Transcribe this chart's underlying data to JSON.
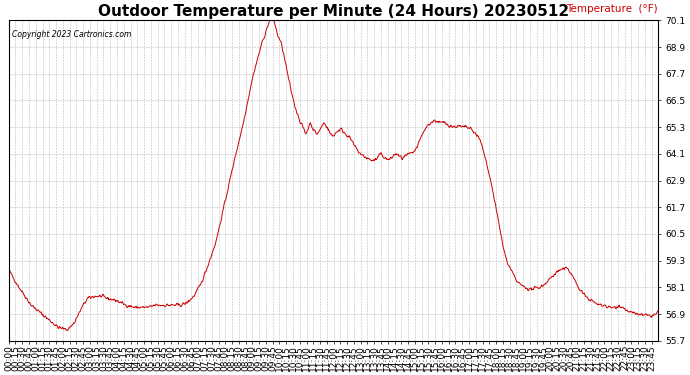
{
  "title": "Outdoor Temperature per Minute (24 Hours) 20230512",
  "copyright": "Copyright 2023 Cartronics.com",
  "legend_label": "Temperature  (°F)",
  "line_color": "#cc0000",
  "background_color": "#ffffff",
  "grid_color": "#aaaaaa",
  "ylim": [
    55.7,
    70.1
  ],
  "yticks": [
    55.7,
    56.9,
    58.1,
    59.3,
    60.5,
    61.7,
    62.9,
    64.1,
    65.3,
    66.5,
    67.7,
    68.9,
    70.1
  ],
  "x_tick_interval": 15,
  "title_fontsize": 11,
  "axis_fontsize": 6.5,
  "control_points": [
    [
      0,
      58.9
    ],
    [
      20,
      58.2
    ],
    [
      50,
      57.3
    ],
    [
      80,
      56.8
    ],
    [
      110,
      56.3
    ],
    [
      130,
      56.2
    ],
    [
      145,
      56.5
    ],
    [
      155,
      56.9
    ],
    [
      165,
      57.3
    ],
    [
      175,
      57.6
    ],
    [
      190,
      57.7
    ],
    [
      205,
      57.7
    ],
    [
      220,
      57.6
    ],
    [
      240,
      57.5
    ],
    [
      260,
      57.3
    ],
    [
      280,
      57.2
    ],
    [
      295,
      57.2
    ],
    [
      310,
      57.2
    ],
    [
      325,
      57.3
    ],
    [
      340,
      57.3
    ],
    [
      360,
      57.3
    ],
    [
      380,
      57.3
    ],
    [
      395,
      57.4
    ],
    [
      410,
      57.7
    ],
    [
      425,
      58.2
    ],
    [
      440,
      59.0
    ],
    [
      460,
      60.2
    ],
    [
      480,
      62.0
    ],
    [
      500,
      63.8
    ],
    [
      520,
      65.5
    ],
    [
      540,
      67.5
    ],
    [
      560,
      69.0
    ],
    [
      575,
      69.9
    ],
    [
      583,
      70.35
    ],
    [
      588,
      70.1
    ],
    [
      595,
      69.5
    ],
    [
      605,
      69.0
    ],
    [
      615,
      68.0
    ],
    [
      625,
      67.0
    ],
    [
      635,
      66.2
    ],
    [
      645,
      65.6
    ],
    [
      652,
      65.3
    ],
    [
      658,
      65.0
    ],
    [
      663,
      65.2
    ],
    [
      668,
      65.5
    ],
    [
      673,
      65.3
    ],
    [
      678,
      65.1
    ],
    [
      683,
      65.0
    ],
    [
      688,
      65.1
    ],
    [
      693,
      65.3
    ],
    [
      698,
      65.5
    ],
    [
      703,
      65.4
    ],
    [
      708,
      65.2
    ],
    [
      713,
      65.0
    ],
    [
      718,
      64.9
    ],
    [
      723,
      65.0
    ],
    [
      730,
      65.15
    ],
    [
      737,
      65.2
    ],
    [
      742,
      65.1
    ],
    [
      747,
      65.0
    ],
    [
      752,
      64.9
    ],
    [
      757,
      64.8
    ],
    [
      765,
      64.5
    ],
    [
      775,
      64.2
    ],
    [
      785,
      64.0
    ],
    [
      795,
      63.9
    ],
    [
      805,
      63.8
    ],
    [
      815,
      63.85
    ],
    [
      820,
      64.0
    ],
    [
      825,
      64.1
    ],
    [
      830,
      64.0
    ],
    [
      838,
      63.85
    ],
    [
      845,
      63.85
    ],
    [
      852,
      64.0
    ],
    [
      858,
      64.1
    ],
    [
      865,
      64.0
    ],
    [
      872,
      63.9
    ],
    [
      880,
      64.0
    ],
    [
      888,
      64.1
    ],
    [
      895,
      64.1
    ],
    [
      905,
      64.4
    ],
    [
      915,
      64.9
    ],
    [
      925,
      65.3
    ],
    [
      935,
      65.5
    ],
    [
      945,
      65.6
    ],
    [
      955,
      65.5
    ],
    [
      965,
      65.5
    ],
    [
      975,
      65.4
    ],
    [
      985,
      65.3
    ],
    [
      995,
      65.35
    ],
    [
      1005,
      65.3
    ],
    [
      1015,
      65.3
    ],
    [
      1025,
      65.2
    ],
    [
      1035,
      65.0
    ],
    [
      1045,
      64.7
    ],
    [
      1055,
      64.0
    ],
    [
      1065,
      63.2
    ],
    [
      1075,
      62.2
    ],
    [
      1085,
      61.1
    ],
    [
      1095,
      60.0
    ],
    [
      1105,
      59.2
    ],
    [
      1115,
      58.8
    ],
    [
      1125,
      58.4
    ],
    [
      1135,
      58.2
    ],
    [
      1145,
      58.1
    ],
    [
      1155,
      58.0
    ],
    [
      1165,
      58.05
    ],
    [
      1175,
      58.1
    ],
    [
      1185,
      58.2
    ],
    [
      1195,
      58.4
    ],
    [
      1205,
      58.6
    ],
    [
      1215,
      58.8
    ],
    [
      1225,
      58.9
    ],
    [
      1235,
      58.95
    ],
    [
      1240,
      58.9
    ],
    [
      1248,
      58.7
    ],
    [
      1255,
      58.4
    ],
    [
      1262,
      58.1
    ],
    [
      1270,
      57.9
    ],
    [
      1278,
      57.7
    ],
    [
      1285,
      57.6
    ],
    [
      1292,
      57.5
    ],
    [
      1300,
      57.4
    ],
    [
      1310,
      57.3
    ],
    [
      1320,
      57.3
    ],
    [
      1330,
      57.2
    ],
    [
      1338,
      57.2
    ],
    [
      1345,
      57.2
    ],
    [
      1352,
      57.3
    ],
    [
      1360,
      57.2
    ],
    [
      1368,
      57.1
    ],
    [
      1375,
      57.0
    ],
    [
      1382,
      56.95
    ],
    [
      1390,
      56.9
    ],
    [
      1398,
      56.9
    ],
    [
      1406,
      56.85
    ],
    [
      1413,
      56.85
    ],
    [
      1420,
      56.8
    ],
    [
      1428,
      56.85
    ],
    [
      1435,
      56.9
    ],
    [
      1439,
      57.0
    ]
  ]
}
